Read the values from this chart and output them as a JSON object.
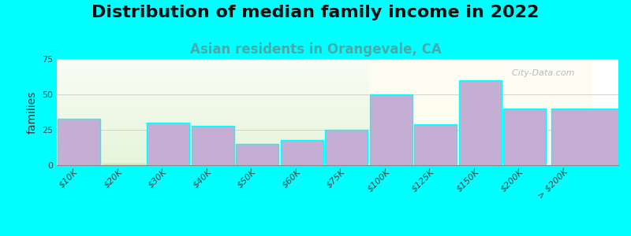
{
  "title": "Distribution of median family income in 2022",
  "subtitle": "Asian residents in Orangevale, CA",
  "ylabel": "families",
  "background_color": "#00FFFF",
  "bar_color": "#c4aed4",
  "bar_edgecolor": "#00FFFF",
  "categories": [
    "$10K",
    "$20K",
    "$30K",
    "$40K",
    "$50K",
    "$60K",
    "$75K",
    "$100K",
    "$125K",
    "$150K",
    "$200K",
    "> $200K"
  ],
  "values": [
    33,
    1,
    30,
    28,
    15,
    18,
    25,
    50,
    29,
    60,
    40,
    40
  ],
  "ylim": [
    0,
    75
  ],
  "yticks": [
    0,
    25,
    50,
    75
  ],
  "watermark": "City-Data.com",
  "title_fontsize": 16,
  "subtitle_fontsize": 12,
  "subtitle_color": "#4aaaaa",
  "ylabel_fontsize": 10,
  "tick_fontsize": 8,
  "bg_left_color": "#d0ecc0",
  "bg_right_color": "#f0f0e0",
  "bg_split_index": 7
}
